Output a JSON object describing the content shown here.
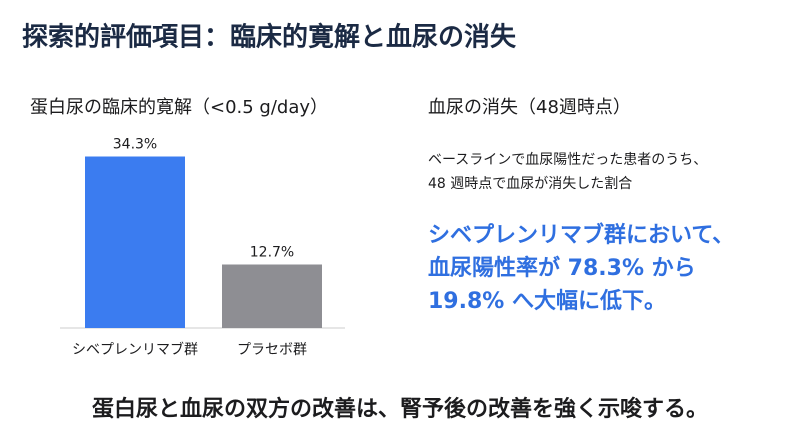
{
  "title": "探索的評価項目：臨床的寛解と血尿の消失",
  "chart_data": {
    "type": "bar",
    "title": "蛋白尿の臨床的寛解（<0.5 g/day）",
    "categories": [
      "シベプレンリマブ群",
      "プラセボ群"
    ],
    "values": [
      34.3,
      12.7
    ],
    "value_labels": [
      "34.3%",
      "12.7%"
    ],
    "colors": [
      "#3b7cf0",
      "#8e8e93"
    ]
  },
  "hematuria": {
    "title": "血尿の消失（48週時点）",
    "description": [
      "ベースラインで血尿陽性だった患者のうち、",
      "48 週時点で血尿が消失した割合"
    ],
    "highlight": [
      "シベプレンリマブ群において、",
      "血尿陽性率が 78.3% から",
      "19.8% へ大幅に低下。"
    ]
  },
  "conclusion": "蛋白尿と血尿の双方の改善は、腎予後の改善を強く示唆する。"
}
